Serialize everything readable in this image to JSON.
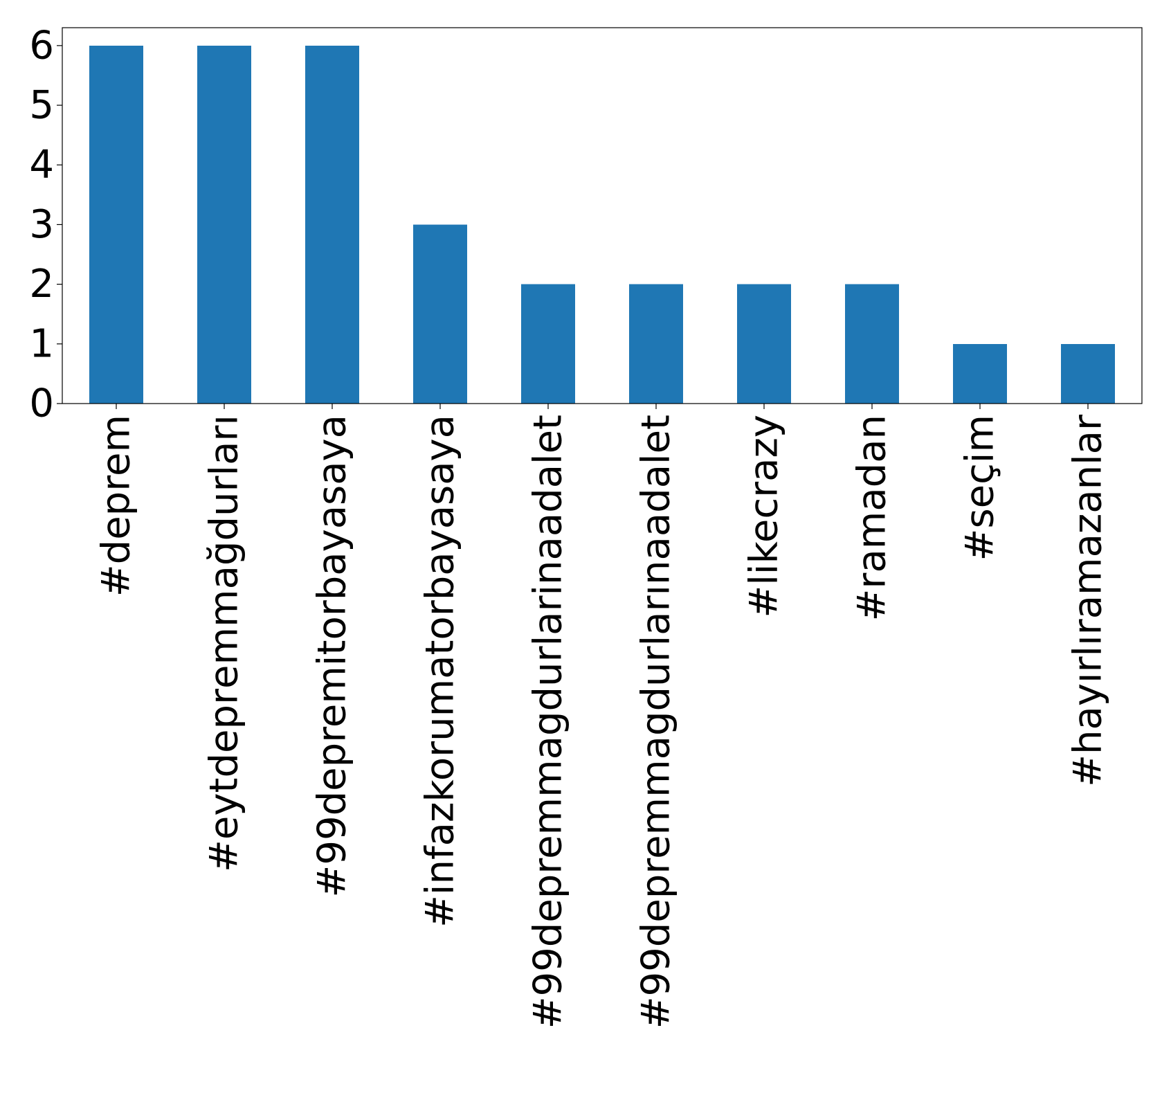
{
  "chart_data": {
    "type": "bar",
    "title": "",
    "xlabel": "",
    "ylabel": "",
    "categories": [
      "#deprem",
      "#eytdeprеmmağdurları",
      "#99depremitorbayasaya",
      "#infazkorumatorbayasaya",
      "#99depremmagdurlarinaadalet",
      "#99depremmagdurlarınaadalet",
      "#likecrazy",
      "#ramadan",
      "#seçim",
      "#hayırlıramazanlar"
    ],
    "values": [
      6,
      6,
      6,
      3,
      2,
      2,
      2,
      2,
      1,
      1
    ],
    "ylim": [
      0,
      6.3
    ],
    "yticks": [
      0,
      1,
      2,
      3,
      4,
      5,
      6
    ],
    "grid": false,
    "bar_color": "#1f77b4"
  }
}
